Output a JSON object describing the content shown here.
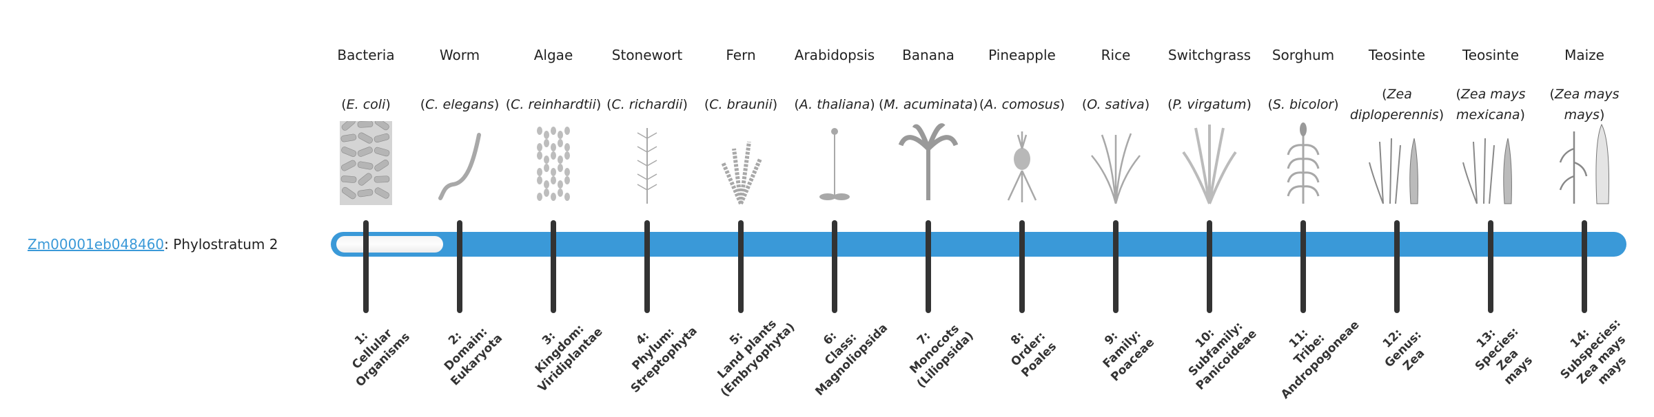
{
  "gene": {
    "id": "Zm00001eb048460",
    "separator": ": ",
    "label": "Phylostratum 2"
  },
  "progress": {
    "phylostratum": 2,
    "total": 14
  },
  "colors": {
    "accent": "#3a99d8",
    "tick": "#333333"
  },
  "organisms": [
    {
      "common": "Bacteria",
      "sci": "E. coli",
      "icon": "bacteria-icon"
    },
    {
      "common": "Worm",
      "sci": "C. elegans",
      "icon": "worm-icon"
    },
    {
      "common": "Algae",
      "sci": "C. reinhardtii",
      "icon": "algae-icon"
    },
    {
      "common": "Stonewort",
      "sci": "C. richardii",
      "icon": "stonewort-icon"
    },
    {
      "common": "Fern",
      "sci": "C. braunii",
      "icon": "fern-icon"
    },
    {
      "common": "Arabidopsis",
      "sci": "A. thaliana",
      "icon": "arabidopsis-icon"
    },
    {
      "common": "Banana",
      "sci": "M. acuminata",
      "icon": "banana-icon"
    },
    {
      "common": "Pineapple",
      "sci": "A. comosus",
      "icon": "pineapple-icon"
    },
    {
      "common": "Rice",
      "sci": "O. sativa",
      "icon": "rice-icon"
    },
    {
      "common": "Switchgrass",
      "sci": "P. virgatum",
      "icon": "switchgrass-icon"
    },
    {
      "common": "Sorghum",
      "sci": "S. bicolor",
      "icon": "sorghum-icon"
    },
    {
      "common": "Teosinte",
      "sci": "Zea diploperennis",
      "icon": "teosinte-icon"
    },
    {
      "common": "Teosinte",
      "sci": "Zea mays mexicana",
      "icon": "teosinte-icon"
    },
    {
      "common": "Maize",
      "sci": "Zea mays mays",
      "icon": "maize-icon"
    }
  ],
  "strata": [
    [
      "1:",
      "Cellular",
      "Organisms"
    ],
    [
      "2:",
      "Domain:",
      "Eukaryota"
    ],
    [
      "3:",
      "Kingdom:",
      "Viridiplantae"
    ],
    [
      "4:",
      "Phylum:",
      "Streptophyta"
    ],
    [
      "5:",
      "Land plants",
      "(Embryophyta)"
    ],
    [
      "6:",
      "Class:",
      "Magnoliopsida"
    ],
    [
      "7:",
      "Monocots",
      "(Liliopsida)"
    ],
    [
      "8:",
      "Order:",
      "Poales"
    ],
    [
      "9:",
      "Family:",
      "Poaceae"
    ],
    [
      "10:",
      "Subfamily:",
      "Panicoideae"
    ],
    [
      "11:",
      "Tribe:",
      "Andropogoneae"
    ],
    [
      "12:",
      "Genus:",
      "Zea"
    ],
    [
      "13:",
      "Species:",
      "Zea",
      "mays"
    ],
    [
      "14:",
      "Subspecies:",
      "Zea mays",
      "mays"
    ]
  ]
}
